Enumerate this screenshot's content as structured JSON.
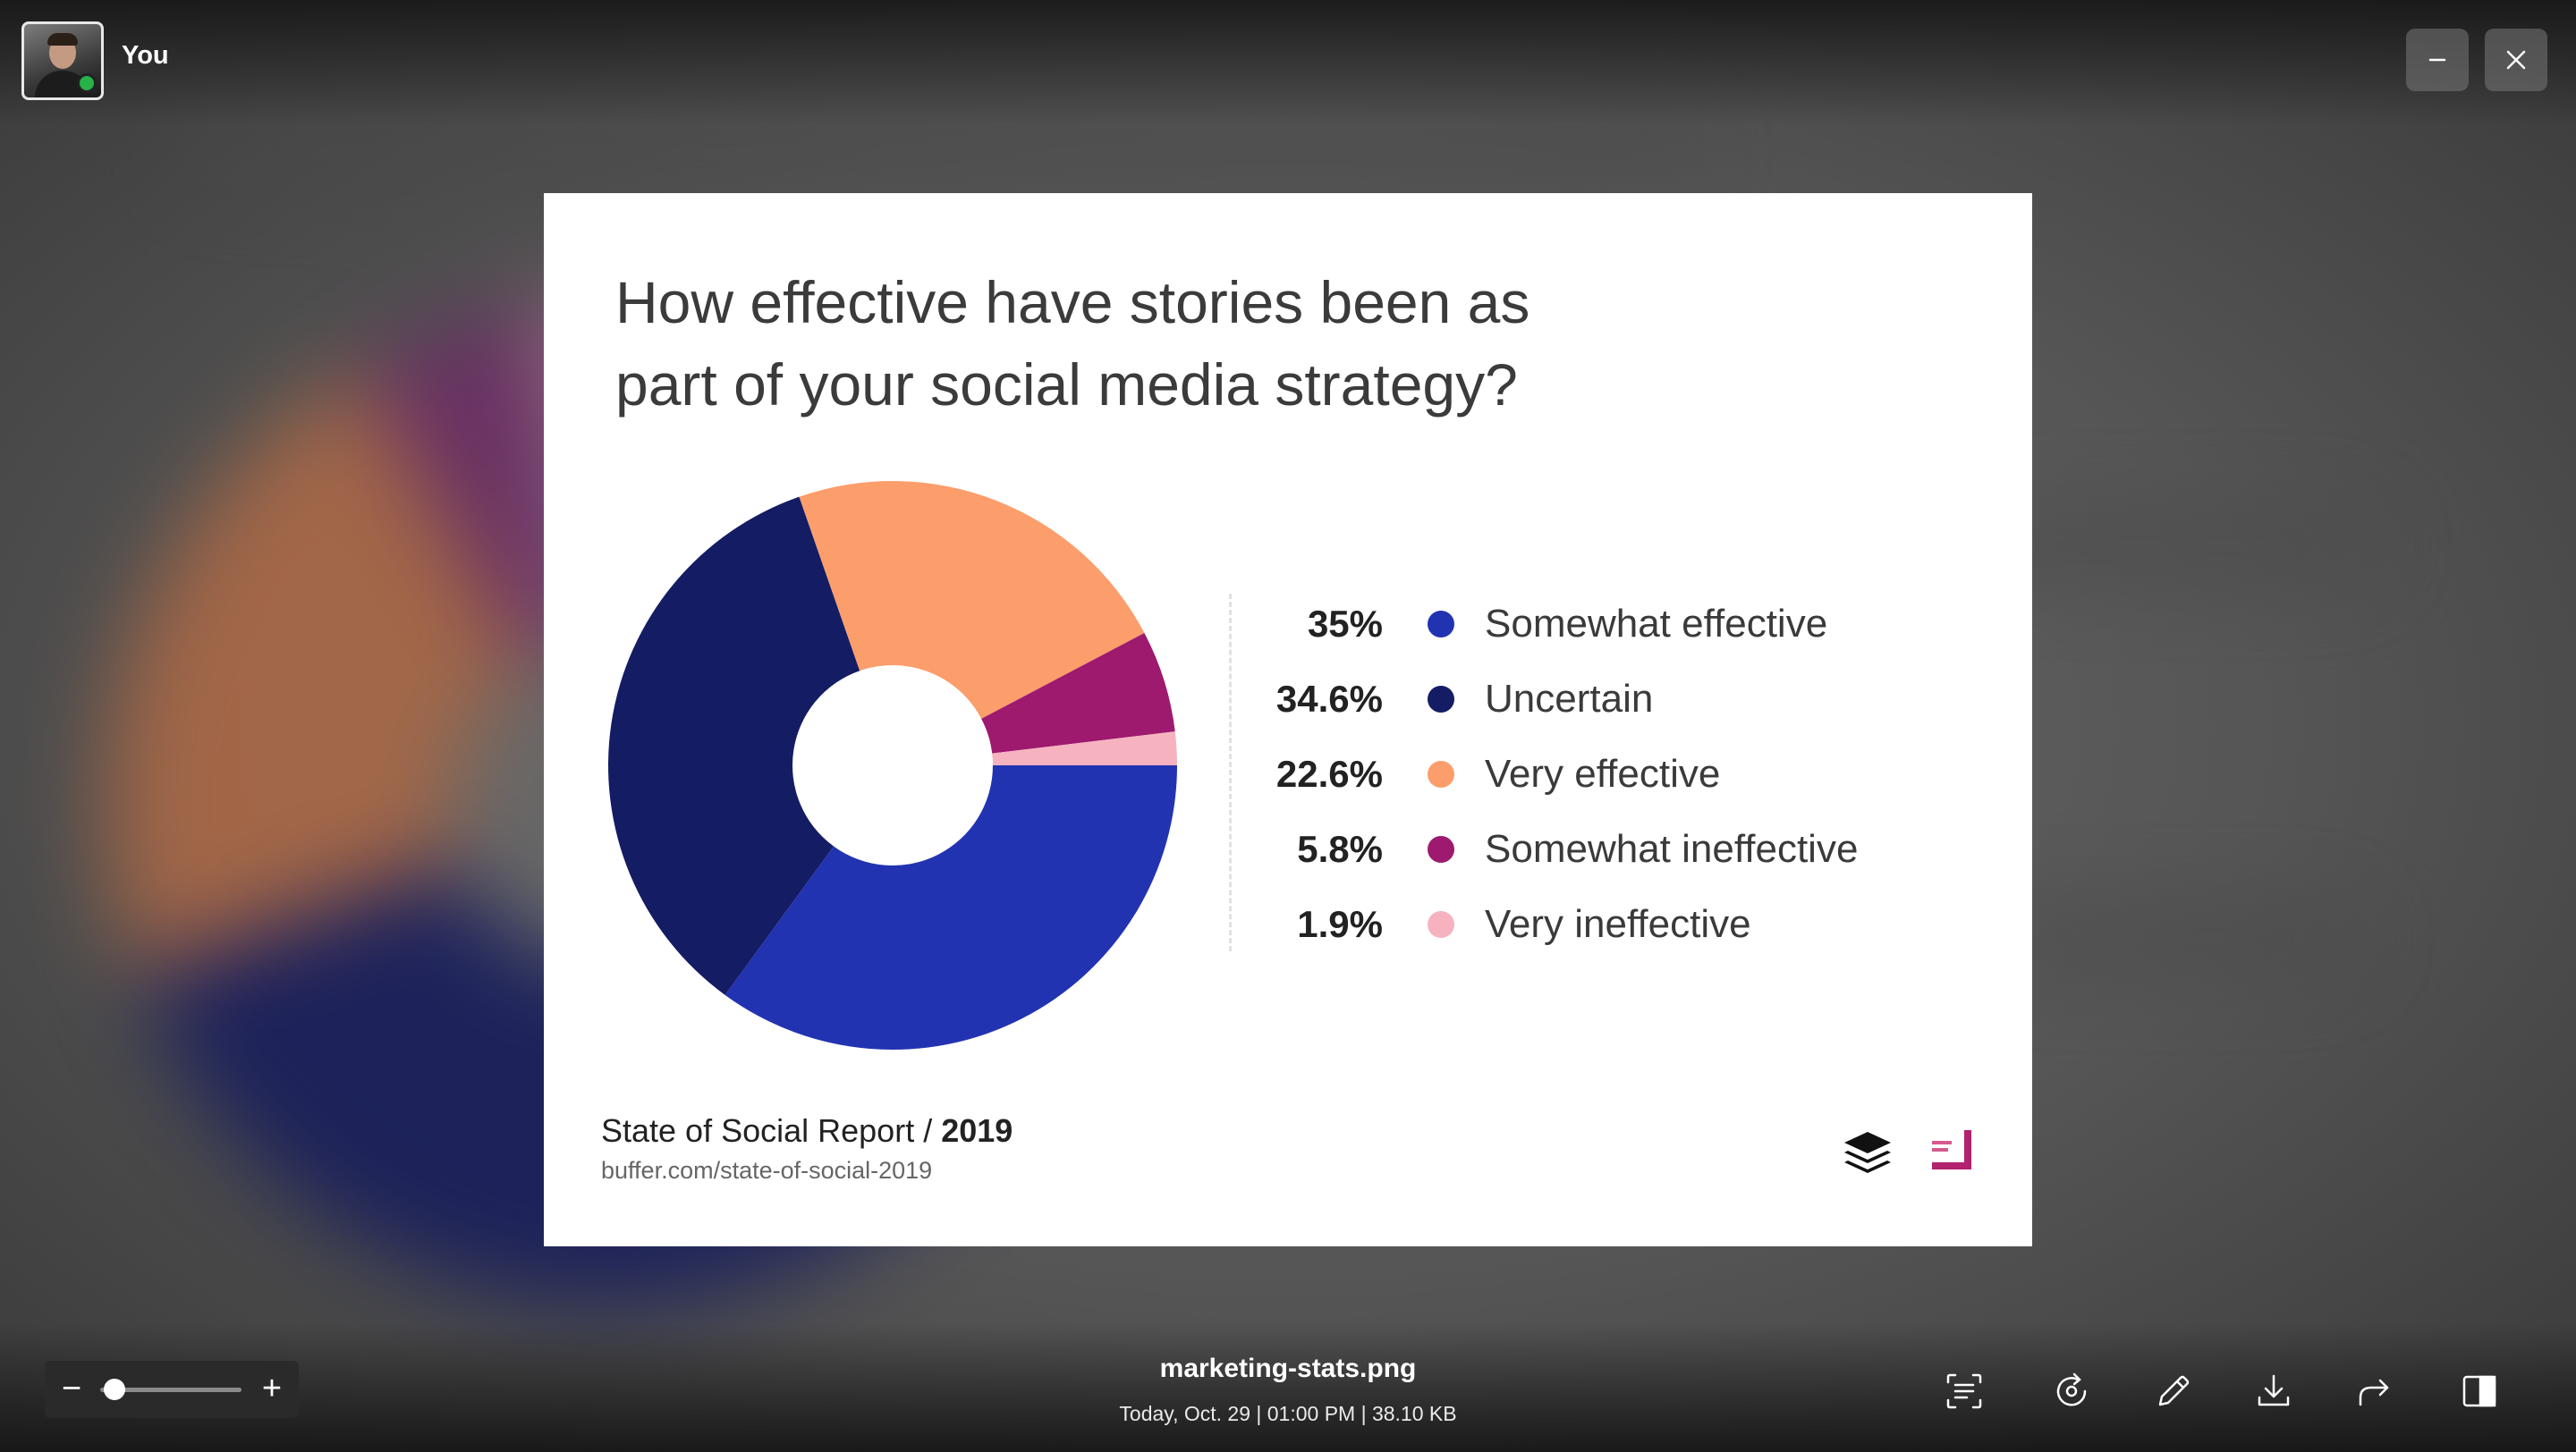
{
  "header": {
    "user_name": "You"
  },
  "slide": {
    "title_line1": "How effective have stories been as",
    "title_line2": "part of your social media strategy?",
    "footer_title_prefix": "State of Social Report / ",
    "footer_title_year": "2019",
    "footer_url": "buffer.com/state-of-social-2019",
    "legend": [
      {
        "pct": "35%",
        "label": "Somewhat effective",
        "color": "#2233b2"
      },
      {
        "pct": "34.6%",
        "label": "Uncertain",
        "color": "#141c64"
      },
      {
        "pct": "22.6%",
        "label": "Very effective",
        "color": "#fc9d6c"
      },
      {
        "pct": "5.8%",
        "label": "Somewhat ineffective",
        "color": "#9d1a6e"
      },
      {
        "pct": "1.9%",
        "label": "Very ineffective",
        "color": "#f6b3bf"
      }
    ]
  },
  "chart_data": {
    "type": "pie",
    "title": "How effective have stories been as part of your social media strategy?",
    "categories": [
      "Somewhat effective",
      "Uncertain",
      "Very effective",
      "Somewhat ineffective",
      "Very ineffective"
    ],
    "values": [
      35,
      34.6,
      22.6,
      5.8,
      1.9
    ],
    "colors": [
      "#2233b2",
      "#141c64",
      "#fc9d6c",
      "#9d1a6e",
      "#f6b3bf"
    ],
    "donut": true
  },
  "footer": {
    "file_name": "marketing-stats.png",
    "file_meta": "Today, Oct. 29  |  01:00 PM  |  38.10 KB",
    "zoom_minus": "−",
    "zoom_plus": "+",
    "zoom_level": 0.1
  },
  "icons": {
    "minimize": "minimize-icon",
    "close": "close-icon",
    "text_extract": "text-extract-icon",
    "rotate": "rotate-icon",
    "edit": "pencil-icon",
    "download": "download-icon",
    "share": "share-icon",
    "sidebar": "sidebar-toggle-icon"
  }
}
